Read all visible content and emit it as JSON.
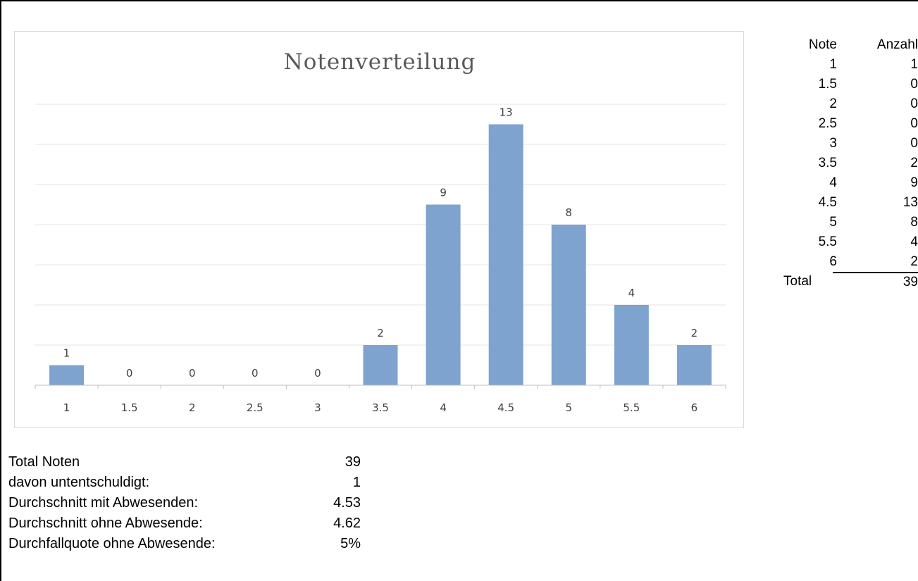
{
  "chart_data": {
    "type": "bar",
    "title": "Notenverteilung",
    "categories": [
      "1",
      "1.5",
      "2",
      "2.5",
      "3",
      "3.5",
      "4",
      "4.5",
      "5",
      "5.5",
      "6"
    ],
    "values": [
      1,
      0,
      0,
      0,
      0,
      2,
      9,
      13,
      8,
      4,
      2
    ],
    "ylim": [
      0,
      14
    ],
    "grid": true,
    "bar_color": "#7ea3cf",
    "data_labels": true
  },
  "table": {
    "headers": [
      "Note",
      "Anzahl"
    ],
    "rows": [
      [
        "1",
        "1"
      ],
      [
        "1.5",
        "0"
      ],
      [
        "2",
        "0"
      ],
      [
        "2.5",
        "0"
      ],
      [
        "3",
        "0"
      ],
      [
        "3.5",
        "2"
      ],
      [
        "4",
        "9"
      ],
      [
        "4.5",
        "13"
      ],
      [
        "5",
        "8"
      ],
      [
        "5.5",
        "4"
      ],
      [
        "6",
        "2"
      ]
    ],
    "total_label": "Total",
    "total_value": "39"
  },
  "stats": [
    {
      "label": "Total Noten",
      "value": "39"
    },
    {
      "label": "davon untentschuldigt:",
      "value": "1"
    },
    {
      "label": "Durchschnitt mit Abwesenden:",
      "value": "4.53"
    },
    {
      "label": "Durchschnitt ohne Abwesende:",
      "value": "4.62"
    },
    {
      "label": "Durchfallquote ohne Abwesende:",
      "value": "5%"
    }
  ]
}
